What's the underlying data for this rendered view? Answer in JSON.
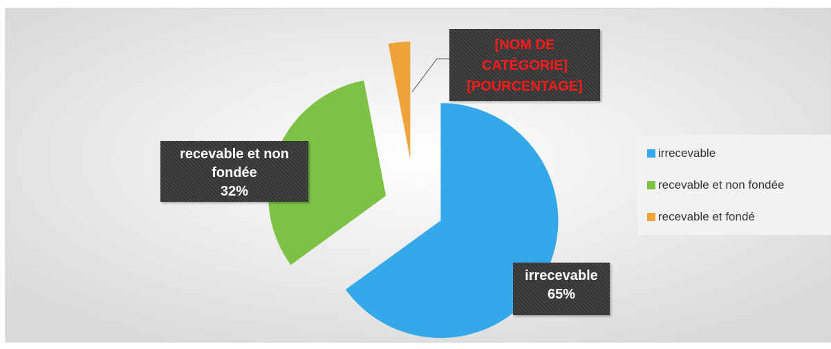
{
  "chart_data": {
    "type": "pie",
    "categories": [
      "irrecevable",
      "recevable et non fondée",
      "recevable et fondé"
    ],
    "values": [
      65,
      32,
      3
    ],
    "value_labels": [
      "65%",
      "32%",
      null
    ],
    "colors": [
      "#33a9ea",
      "#7dc245",
      "#eea43a"
    ],
    "annotation": "[NOM DE CATÉGORIE] [POURCENTAGE]",
    "legend": "right"
  }
}
